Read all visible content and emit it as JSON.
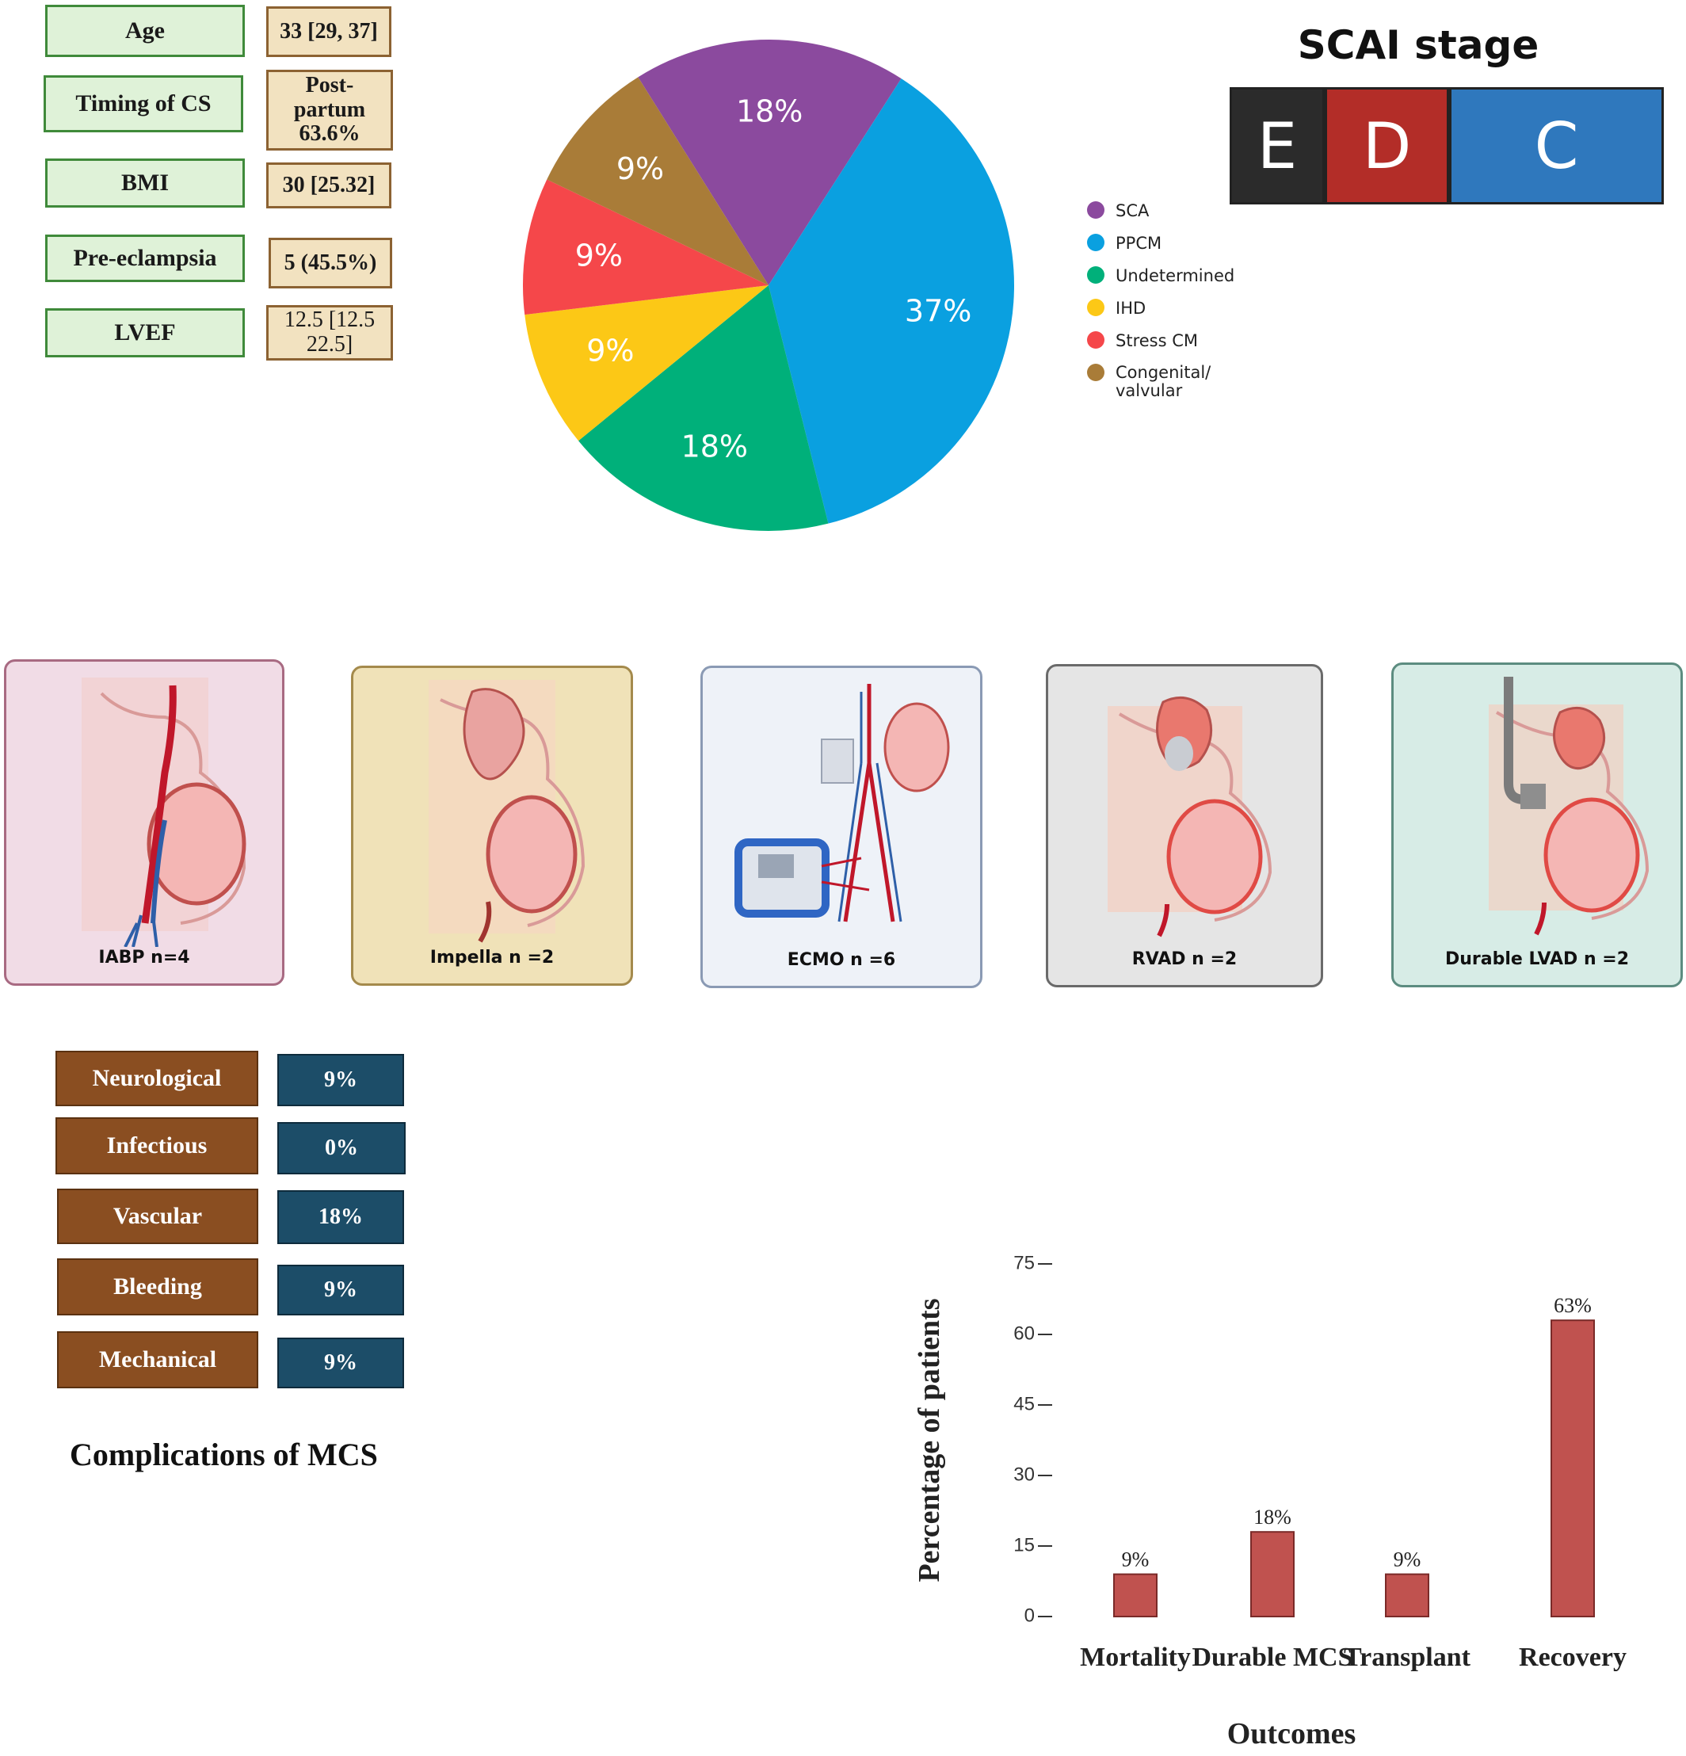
{
  "patient_table": [
    {
      "label": "Age",
      "value": "33 [29, 37]"
    },
    {
      "label": "Timing of CS",
      "value": "Post-partum 63.6%"
    },
    {
      "label": "BMI",
      "value": "30 [25.32]"
    },
    {
      "label": "Pre-eclampsia",
      "value": "5 (45.5%)"
    },
    {
      "label": "LVEF",
      "value": "12.5 [12.5 22.5]"
    }
  ],
  "scai": {
    "title": "SCAI stage",
    "stages": [
      {
        "label": "E",
        "color": "#2b2b2b"
      },
      {
        "label": "D",
        "color": "#b32d28"
      },
      {
        "label": "C",
        "color": "#2f78bd"
      }
    ]
  },
  "mcs_devices": [
    {
      "label": "IABP n=4",
      "color": "#f1dce6",
      "border": "#a86a82"
    },
    {
      "label": "Impella n =2",
      "color": "#f0e2b8",
      "border": "#a48a4c"
    },
    {
      "label": "ECMO n =6",
      "color": "#eef2f8",
      "border": "#8a9ab4"
    },
    {
      "label": "RVAD n =2",
      "color": "#e5e5e5",
      "border": "#6a6a6a"
    },
    {
      "label": "Durable LVAD  n =2",
      "color": "#d7ece6",
      "border": "#5c8c80"
    }
  ],
  "complications": {
    "title": "Complications of MCS",
    "items": [
      {
        "label": "Neurological",
        "value": "9%"
      },
      {
        "label": "Infectious",
        "value": "0%"
      },
      {
        "label": "Vascular",
        "value": "18%"
      },
      {
        "label": "Bleeding",
        "value": "9%"
      },
      {
        "label": "Mechanical",
        "value": "9%"
      }
    ]
  },
  "chart_data": [
    {
      "type": "pie",
      "title": "",
      "slices": [
        {
          "name": "SCA",
          "value": 18,
          "label": "18%",
          "color": "#8b4a9e"
        },
        {
          "name": "PPCM",
          "value": 37,
          "label": "37%",
          "color": "#0aa0e0"
        },
        {
          "name": "Undetermined",
          "value": 18,
          "label": "18%",
          "color": "#00b07a"
        },
        {
          "name": "IHD",
          "value": 9,
          "label": "9%",
          "color": "#fcc816"
        },
        {
          "name": "Stress CM",
          "value": 9,
          "label": "9%",
          "color": "#f5474a"
        },
        {
          "name": "Congenital/ valvular",
          "value": 9,
          "label": "9%",
          "color": "#a97c38"
        }
      ],
      "legend_position": "right"
    },
    {
      "type": "bar",
      "categories": [
        "Mortality",
        "Durable MCS",
        "Transplant",
        "Recovery"
      ],
      "values": [
        9,
        18,
        9,
        63
      ],
      "data_labels": [
        "9%",
        "18%",
        "9%",
        "63%"
      ],
      "xlabel": "Outcomes",
      "ylabel": "Percentage of patients",
      "ylim": [
        0,
        75
      ],
      "yticks": [
        0,
        15,
        30,
        45,
        60,
        75
      ],
      "bar_color": "#c0524f",
      "grid": false
    }
  ]
}
